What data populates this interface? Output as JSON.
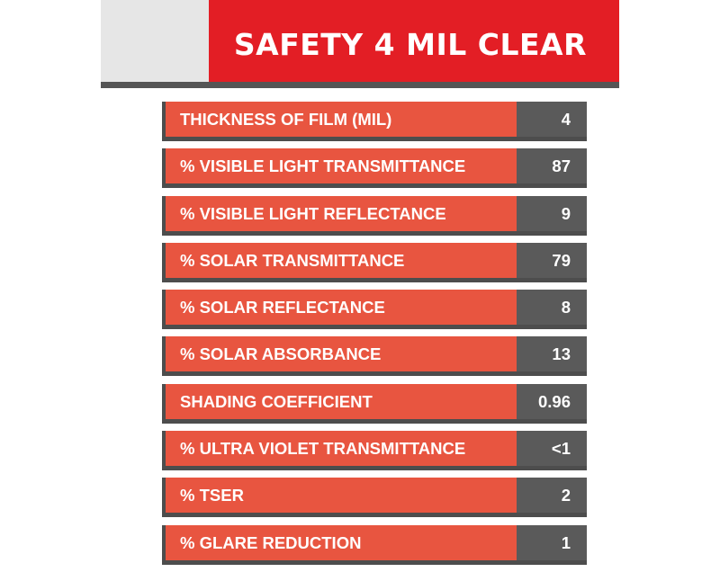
{
  "title": "SAFETY 4 MIL CLEAR",
  "colors": {
    "header_red": "#e31e25",
    "header_grey": "#e6e6e6",
    "label_bg": "#e85540",
    "value_bg": "#5a5a5a",
    "shadow": "#4d4d4d",
    "text": "#ffffff"
  },
  "specs": [
    {
      "label": "THICKNESS OF FILM (MIL)",
      "value": "4"
    },
    {
      "label": "% VISIBLE LIGHT TRANSMITTANCE",
      "value": "87"
    },
    {
      "label": "% VISIBLE LIGHT REFLECTANCE",
      "value": "9"
    },
    {
      "label": "% SOLAR TRANSMITTANCE",
      "value": "79"
    },
    {
      "label": "% SOLAR REFLECTANCE",
      "value": "8"
    },
    {
      "label": "% SOLAR ABSORBANCE",
      "value": "13"
    },
    {
      "label": "SHADING COEFFICIENT",
      "value": "0.96"
    },
    {
      "label": "% ULTRA VIOLET TRANSMITTANCE",
      "value": "<1"
    },
    {
      "label": "% TSER",
      "value": "2"
    },
    {
      "label": "% GLARE REDUCTION",
      "value": "1"
    }
  ]
}
